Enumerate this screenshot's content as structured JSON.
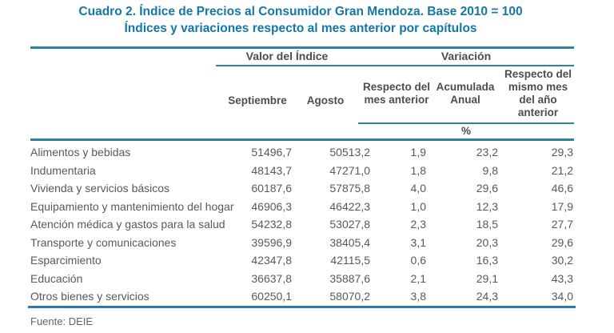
{
  "title": {
    "line1": "Cuadro 2. Índice de Precios al Consumidor Gran Mendoza. Base 2010 = 100",
    "line2": "Índices y variaciones respecto al mes anterior por capítulos"
  },
  "table": {
    "group_headers": {
      "valor_del_indice": "Valor del Índice",
      "variacion": "Variación"
    },
    "columns": {
      "septiembre": "Septiembre",
      "agosto": "Agosto",
      "resp_mes_lines": [
        "Respecto del",
        "mes anterior"
      ],
      "acumulada_lines": [
        "Acumulada",
        "Anual"
      ],
      "resp_anio_lines": [
        "Respecto del",
        "mismo mes",
        "del año",
        "anterior"
      ]
    },
    "unit_label": "%",
    "rows": [
      {
        "label": "Alimentos y bebidas",
        "septiembre": "51496,7",
        "agosto": "50513,2",
        "resp_mes": "1,9",
        "acumulada": "23,2",
        "resp_anio": "29,3"
      },
      {
        "label": "Indumentaria",
        "septiembre": "48143,7",
        "agosto": "47271,0",
        "resp_mes": "1,8",
        "acumulada": "9,8",
        "resp_anio": "21,2"
      },
      {
        "label": "Vivienda y servicios básicos",
        "septiembre": "60187,6",
        "agosto": "57875,8",
        "resp_mes": "4,0",
        "acumulada": "29,6",
        "resp_anio": "46,6"
      },
      {
        "label": "Equipamiento y mantenimiento del hogar",
        "septiembre": "46906,3",
        "agosto": "46422,3",
        "resp_mes": "1,0",
        "acumulada": "12,3",
        "resp_anio": "17,9"
      },
      {
        "label": "Atención médica y gastos para la salud",
        "septiembre": "54232,8",
        "agosto": "53027,8",
        "resp_mes": "2,3",
        "acumulada": "18,5",
        "resp_anio": "27,7"
      },
      {
        "label": "Transporte y comunicaciones",
        "septiembre": "39596,9",
        "agosto": "38405,4",
        "resp_mes": "3,1",
        "acumulada": "20,3",
        "resp_anio": "29,6"
      },
      {
        "label": "Esparcimiento",
        "septiembre": "42347,8",
        "agosto": "42115,5",
        "resp_mes": "0,6",
        "acumulada": "16,3",
        "resp_anio": "30,2"
      },
      {
        "label": "Educación",
        "septiembre": "36637,8",
        "agosto": "35887,6",
        "resp_mes": "2,1",
        "acumulada": "29,1",
        "resp_anio": "43,3"
      },
      {
        "label": "Otros bienes y servicios",
        "septiembre": "60250,1",
        "agosto": "58070,2",
        "resp_mes": "3,8",
        "acumulada": "24,3",
        "resp_anio": "34,0"
      }
    ]
  },
  "footer": {
    "source": "Fuente: DEIE"
  },
  "colors": {
    "title": "#1477a9",
    "rule": "#2d81a1",
    "text": "#58595b"
  }
}
